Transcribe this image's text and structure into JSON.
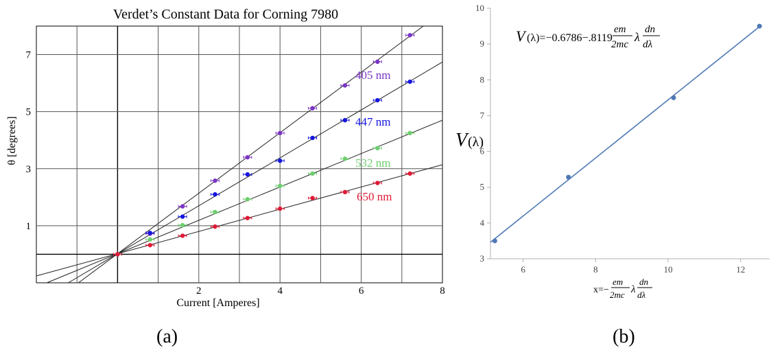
{
  "captions": {
    "left": "(a)",
    "right": "(b)"
  },
  "chart_data": [
    {
      "type": "scatter",
      "title": "Verdet’s Constant Data for Corning 7980",
      "xlabel": "Current [Amperes]",
      "ylabel": "θ [degrees]",
      "xlim": [
        -2,
        8
      ],
      "ylim": [
        -1,
        8
      ],
      "x_ticks": [
        2,
        4,
        6,
        8
      ],
      "y_ticks": [
        1,
        3,
        5,
        7
      ],
      "grid": true,
      "series": [
        {
          "name": "405 nm",
          "color": "#7b35c6",
          "points": [
            [
              0,
              0
            ],
            [
              0.8,
              0.72
            ],
            [
              1.6,
              1.68
            ],
            [
              2.4,
              2.58
            ],
            [
              3.2,
              3.4
            ],
            [
              4.0,
              4.25
            ],
            [
              4.8,
              5.12
            ],
            [
              5.6,
              5.92
            ],
            [
              6.4,
              6.75
            ],
            [
              7.2,
              7.68
            ]
          ],
          "fit": {
            "slope": 1.06,
            "intercept": 0.02
          }
        },
        {
          "name": "447 nm",
          "color": "#1515e0",
          "points": [
            [
              0,
              0
            ],
            [
              0.8,
              0.75
            ],
            [
              1.6,
              1.32
            ],
            [
              2.4,
              2.1
            ],
            [
              3.2,
              2.8
            ],
            [
              4.0,
              3.28
            ],
            [
              4.8,
              4.08
            ],
            [
              5.6,
              4.7
            ],
            [
              6.4,
              5.4
            ],
            [
              7.2,
              6.05
            ]
          ],
          "fit": {
            "slope": 0.84,
            "intercept": 0.02
          }
        },
        {
          "name": "532 nm",
          "color": "#6dcf6d",
          "points": [
            [
              0,
              0
            ],
            [
              0.8,
              0.52
            ],
            [
              1.6,
              1.02
            ],
            [
              2.4,
              1.48
            ],
            [
              3.2,
              1.93
            ],
            [
              4.0,
              2.4
            ],
            [
              4.8,
              2.83
            ],
            [
              5.6,
              3.35
            ],
            [
              6.4,
              3.72
            ],
            [
              7.2,
              4.25
            ]
          ],
          "fit": {
            "slope": 0.585,
            "intercept": 0.02
          }
        },
        {
          "name": "650 nm",
          "color": "#e01a35",
          "points": [
            [
              0,
              0
            ],
            [
              0.8,
              0.32
            ],
            [
              1.6,
              0.65
            ],
            [
              2.4,
              0.97
            ],
            [
              3.2,
              1.27
            ],
            [
              4.0,
              1.6
            ],
            [
              4.8,
              1.97
            ],
            [
              5.6,
              2.18
            ],
            [
              6.4,
              2.5
            ],
            [
              7.2,
              2.83
            ]
          ],
          "fit": {
            "slope": 0.39,
            "intercept": 0.02
          }
        }
      ]
    },
    {
      "type": "scatter",
      "title": "",
      "equation": "V(λ)=−0.6786−.8119 em/2mc λ dn/dλ",
      "xlabel": "x=−em/2mc λ dn/dλ",
      "ylabel": "V(λ)",
      "xlim": [
        5.1,
        12.8
      ],
      "ylim": [
        3,
        10
      ],
      "x_ticks": [
        6,
        8,
        10,
        12
      ],
      "y_ticks": [
        3,
        4,
        5,
        6,
        7,
        8,
        9,
        10
      ],
      "grid": false,
      "color": "#4f79b5",
      "points": [
        [
          5.22,
          3.5
        ],
        [
          7.25,
          5.28
        ],
        [
          10.15,
          7.5
        ],
        [
          12.52,
          9.5
        ]
      ],
      "fit": {
        "slope": 0.8119,
        "intercept": -0.6786
      }
    }
  ]
}
